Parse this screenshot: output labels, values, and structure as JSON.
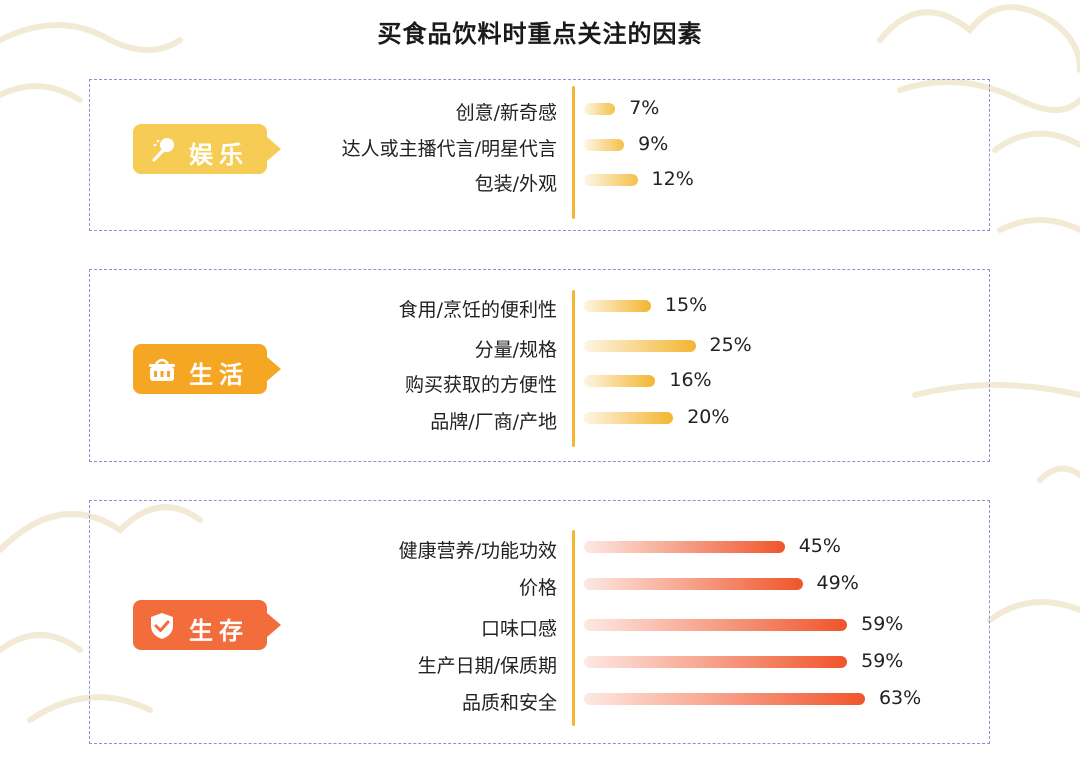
{
  "title": "买食品饮料时重点关注的因素",
  "unit": "%",
  "colors": {
    "ent_badge": "#f7cc55",
    "life_badge": "#f5a623",
    "surv_badge": "#f36d3c",
    "ent_bar": "#f4c04a",
    "life_bar": "#f3b531",
    "surv_bar": "#f0552b",
    "divider": "#f2b630",
    "panel_border": "#8f8fd6"
  },
  "groups": [
    {
      "label": "娱乐",
      "icon": "microphone-icon"
    },
    {
      "label": "生活",
      "icon": "cooking-pot-icon"
    },
    {
      "label": "生存",
      "icon": "shield-check-icon"
    }
  ],
  "chart_data": {
    "type": "bar",
    "orientation": "horizontal",
    "title": "买食品饮料时重点关注的因素",
    "value_unit": "%",
    "xlim": [
      0,
      100
    ],
    "grid": false,
    "groups": [
      {
        "name": "娱乐",
        "categories": [
          "创意/新奇感",
          "达人或主播代言/明星代言",
          "包装/外观"
        ],
        "values": [
          7,
          9,
          12
        ]
      },
      {
        "name": "生活",
        "categories": [
          "食用/烹饪的便利性",
          "分量/规格",
          "购买获取的方便性",
          "品牌/厂商/产地"
        ],
        "values": [
          15,
          25,
          16,
          20
        ]
      },
      {
        "name": "生存",
        "categories": [
          "健康营养/功能功效",
          "价格",
          "口味口感",
          "生产日期/保质期",
          "品质和安全"
        ],
        "values": [
          45,
          49,
          59,
          59,
          63
        ]
      }
    ]
  }
}
